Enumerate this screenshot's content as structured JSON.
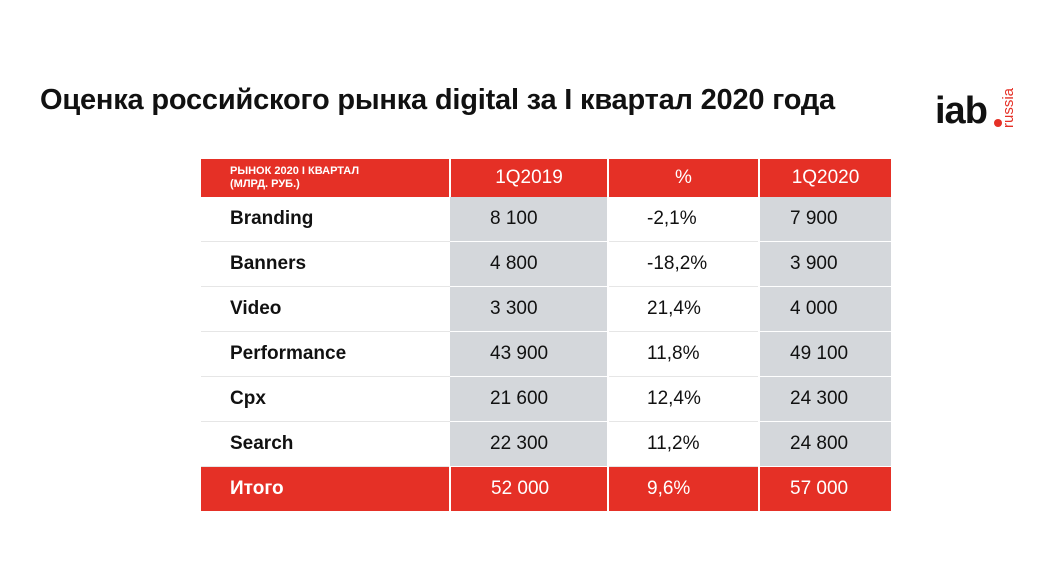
{
  "title": "Оценка российского рынка digital за I квартал 2020 года",
  "logo": {
    "main": "iab",
    "sub": "russia",
    "accent_color": "#e53026"
  },
  "table": {
    "header": {
      "label_line1": "РЫНОК 2020 I КВАРТАЛ",
      "label_line2": "(МЛРД. РУБ.)",
      "col1": "1Q2019",
      "col2": "%",
      "col3": "1Q2020"
    },
    "rows": [
      {
        "name": "Branding",
        "q2019": "8 100",
        "pct": "-2,1%",
        "q2020": "7 900"
      },
      {
        "name": "Banners",
        "q2019": "4 800",
        "pct": "-18,2%",
        "q2020": "3 900"
      },
      {
        "name": "Video",
        "q2019": "3 300",
        "pct": "21,4%",
        "q2020": "4 000"
      },
      {
        "name": "Performance",
        "q2019": "43 900",
        "pct": "11,8%",
        "q2020": "49 100"
      },
      {
        "name": "Cpx",
        "q2019": "21 600",
        "pct": "12,4%",
        "q2020": "24 300"
      },
      {
        "name": "Search",
        "q2019": "22 300",
        "pct": "11,2%",
        "q2020": "24 800"
      }
    ],
    "total": {
      "name": "Итого",
      "q2019": "52 000",
      "pct": "9,6%",
      "q2020": "57 000"
    }
  }
}
